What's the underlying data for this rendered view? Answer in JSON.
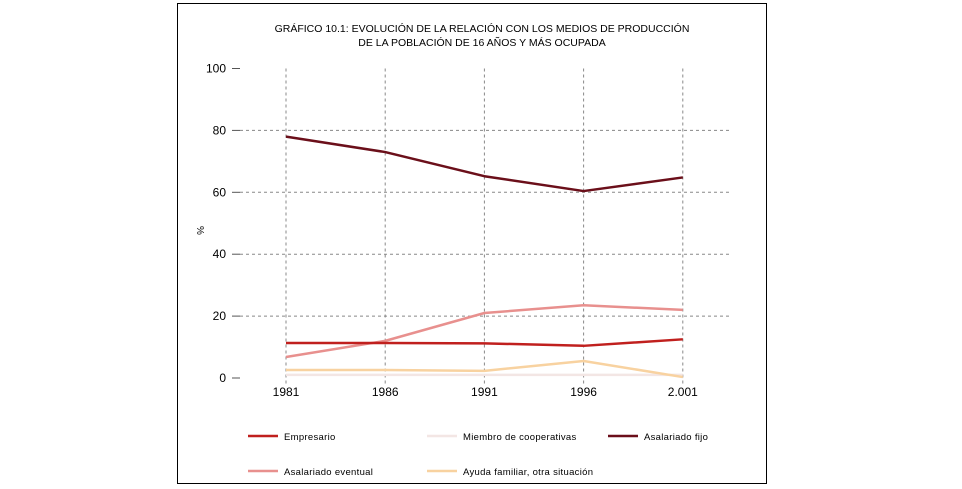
{
  "chart_data": {
    "type": "line",
    "title": "GRÁFICO 10.1: EVOLUCIÓN DE LA RELACIÓN CON LOS MEDIOS DE PRODUCCIÓN",
    "subtitle": "DE LA POBLACIÓN DE 16 AÑOS Y MÁS OCUPADA",
    "xlabel": "",
    "ylabel": "%",
    "categories": [
      "1981",
      "1986",
      "1991",
      "1996",
      "2.001"
    ],
    "ylim": [
      0,
      100
    ],
    "yticks": [
      "0",
      "20",
      "40",
      "60",
      "80",
      "100"
    ],
    "ytick_values": [
      0,
      20,
      40,
      60,
      80,
      100
    ],
    "grid": true,
    "legend_position": "bottom",
    "series": [
      {
        "name": "Empresario",
        "color": "#c0201e",
        "values": [
          11.3,
          11.3,
          11.2,
          10.4,
          12.5
        ]
      },
      {
        "name": "Miembro de cooperativas",
        "color": "#f3e6e4",
        "values": [
          1.0,
          1.0,
          1.0,
          1.0,
          1.0
        ]
      },
      {
        "name": "Asalariado fijo",
        "color": "#6b0f1a",
        "values": [
          78.0,
          73.0,
          65.2,
          60.4,
          64.8
        ]
      },
      {
        "name": "Asalariado eventual",
        "color": "#e8908e",
        "values": [
          6.8,
          12.0,
          21.0,
          23.5,
          22.0
        ]
      },
      {
        "name": "Ayuda familiar, otra situación",
        "color": "#f8d2a0",
        "values": [
          2.6,
          2.6,
          2.3,
          5.5,
          0.3
        ]
      }
    ]
  }
}
